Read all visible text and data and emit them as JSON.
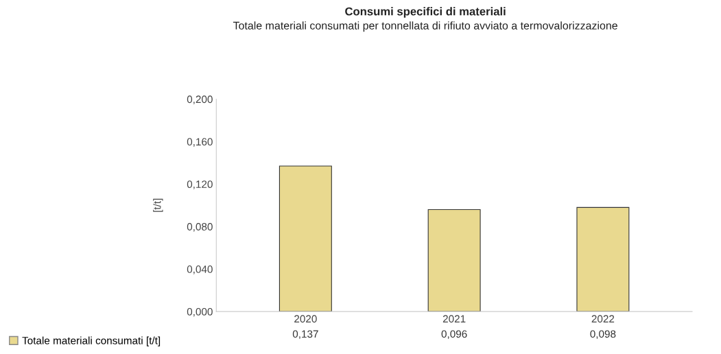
{
  "chart_data": {
    "type": "bar",
    "title": "Consumi specifici di materiali",
    "subtitle": "Totale materiali consumati per tonnellata di rifiuto avviato a termovalorizzazione",
    "ylabel": "[t/t]",
    "categories": [
      "2020",
      "2021",
      "2022"
    ],
    "series": [
      {
        "name": "Totale materiali consumati [t/t]",
        "color": "#e9d98f",
        "values": [
          0.137,
          0.096,
          0.098
        ],
        "value_labels": [
          "0,137",
          "0,096",
          "0,098"
        ]
      }
    ],
    "ylim": [
      0,
      0.2
    ],
    "yticks": [
      {
        "value": 0,
        "label": "0,000"
      },
      {
        "value": 0.04,
        "label": "0,040"
      },
      {
        "value": 0.08,
        "label": "0,080"
      },
      {
        "value": 0.12,
        "label": "0,120"
      },
      {
        "value": 0.16,
        "label": "0,160"
      },
      {
        "value": 0.2,
        "label": "0,200"
      }
    ],
    "grid": false,
    "legend": "bottom left"
  }
}
